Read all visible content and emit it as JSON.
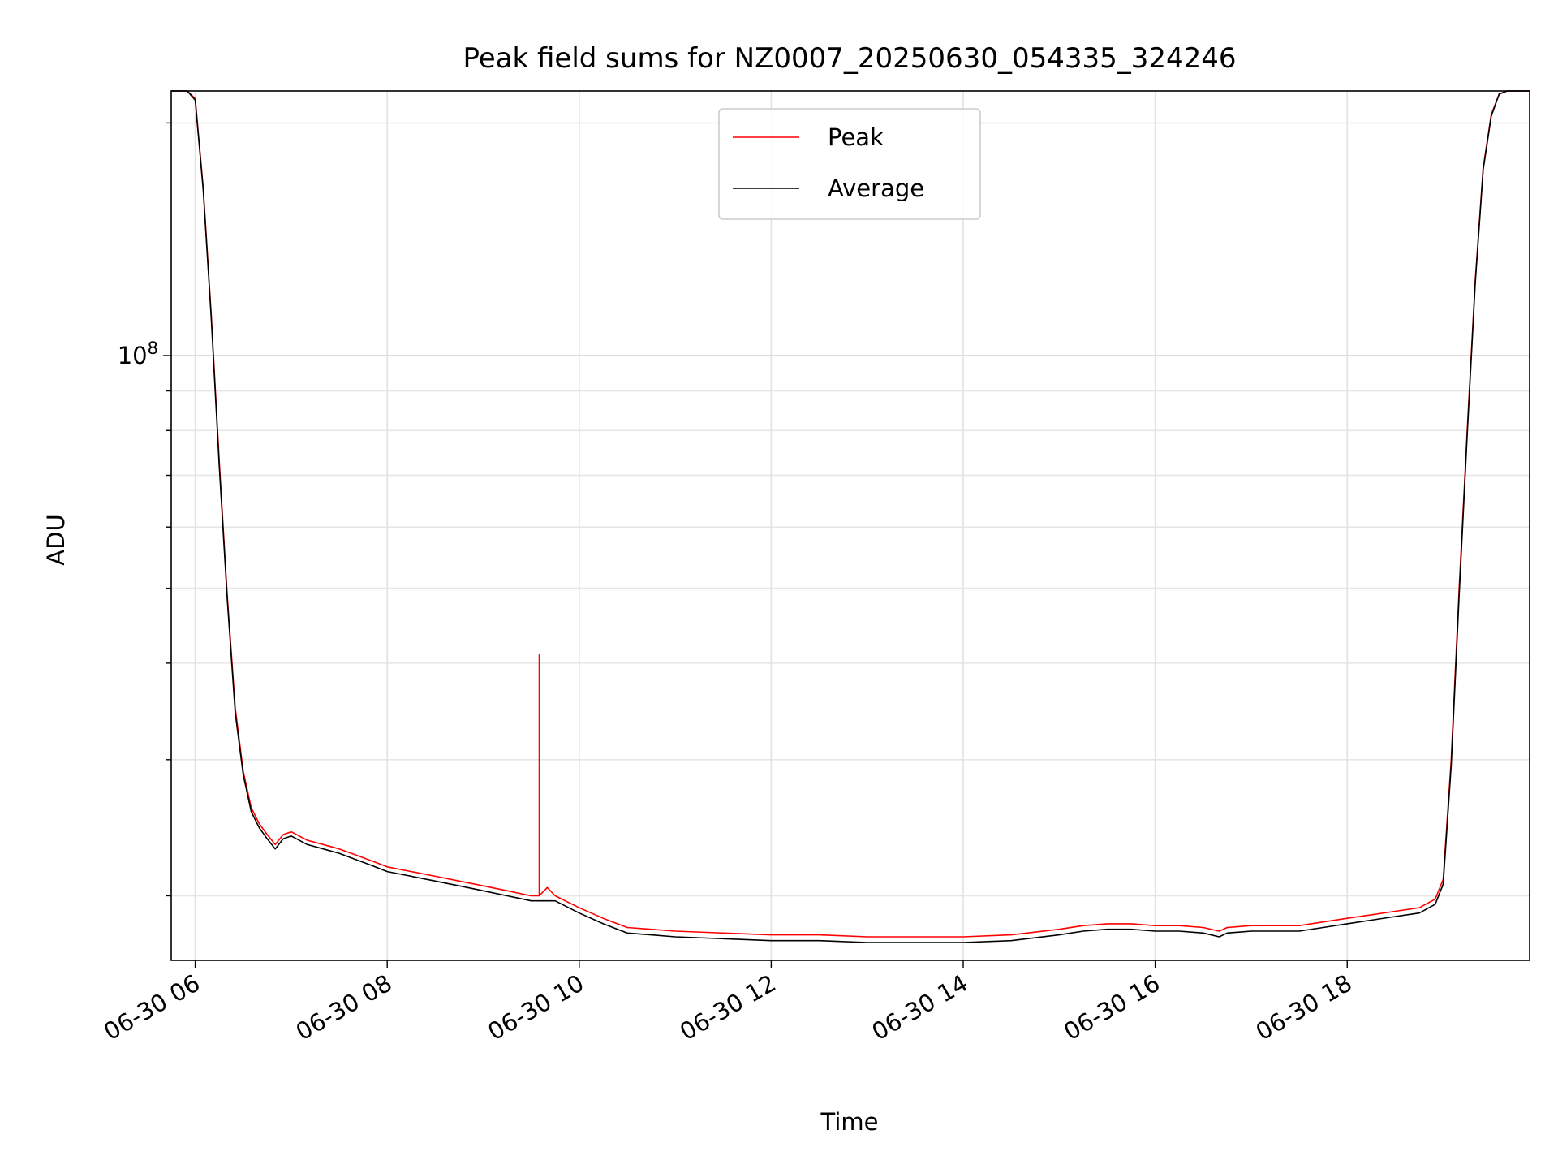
{
  "chart_data": {
    "type": "line",
    "title": "Peak field sums for NZ0007_20250630_054335_324246",
    "xlabel": "Time",
    "ylabel": "ADU",
    "y_scale": "log",
    "grid": "on (major and minor)",
    "legend_placement": "upper center",
    "x_ticks": [
      "06-30 06",
      "06-30 08",
      "06-30 10",
      "06-30 12",
      "06-30 14",
      "06-30 16",
      "06-30 18"
    ],
    "y_major_tick": {
      "base": "10",
      "exponent": "8"
    },
    "xlim": [
      "2025-06-30 05:45",
      "2025-06-30 19:54"
    ],
    "ylim": [
      16500000,
      220000000
    ],
    "series": [
      {
        "name": "Peak",
        "color": "#ff0000",
        "x": [
          "05:45",
          "05:55",
          "06:00",
          "06:05",
          "06:10",
          "06:15",
          "06:20",
          "06:25",
          "06:30",
          "06:35",
          "06:40",
          "06:45",
          "06:50",
          "06:55",
          "07:00",
          "07:10",
          "07:20",
          "07:30",
          "07:40",
          "07:50",
          "08:00",
          "08:15",
          "08:30",
          "08:45",
          "09:00",
          "09:15",
          "09:30",
          "09:35",
          "09:35",
          "09:35",
          "09:40",
          "09:45",
          "10:00",
          "10:15",
          "10:30",
          "10:45",
          "11:00",
          "11:30",
          "12:00",
          "12:30",
          "13:00",
          "13:30",
          "14:00",
          "14:30",
          "15:00",
          "15:15",
          "15:30",
          "15:45",
          "16:00",
          "16:15",
          "16:30",
          "16:40",
          "16:45",
          "17:00",
          "17:15",
          "17:30",
          "17:45",
          "18:00",
          "18:15",
          "18:30",
          "18:45",
          "18:55",
          "19:00",
          "19:05",
          "19:10",
          "19:15",
          "19:20",
          "19:25",
          "19:30",
          "19:35",
          "19:40",
          "19:45",
          "19:54"
        ],
        "y": [
          220000000,
          220000000,
          215000000,
          165000000,
          113000000,
          73000000,
          49000000,
          35000000,
          29000000,
          26000000,
          24800000,
          24000000,
          23300000,
          24000000,
          24200000,
          23600000,
          23300000,
          23000000,
          22600000,
          22200000,
          21800000,
          21500000,
          21200000,
          20900000,
          20600000,
          20300000,
          20000000,
          20000000,
          41000000,
          20000000,
          20500000,
          20000000,
          19300000,
          18700000,
          18200000,
          18100000,
          18000000,
          17900000,
          17800000,
          17800000,
          17700000,
          17700000,
          17700000,
          17800000,
          18100000,
          18300000,
          18400000,
          18400000,
          18300000,
          18300000,
          18200000,
          18000000,
          18200000,
          18300000,
          18300000,
          18300000,
          18500000,
          18700000,
          18900000,
          19100000,
          19300000,
          19800000,
          21000000,
          30000000,
          50000000,
          80000000,
          125000000,
          175000000,
          205000000,
          218000000,
          220000000,
          220000000,
          220000000
        ]
      },
      {
        "name": "Average",
        "color": "#000000",
        "x": [
          "05:45",
          "05:55",
          "06:00",
          "06:05",
          "06:10",
          "06:15",
          "06:20",
          "06:25",
          "06:30",
          "06:35",
          "06:40",
          "06:45",
          "06:50",
          "06:55",
          "07:00",
          "07:10",
          "07:20",
          "07:30",
          "07:40",
          "07:50",
          "08:00",
          "08:15",
          "08:30",
          "08:45",
          "09:00",
          "09:15",
          "09:30",
          "09:45",
          "10:00",
          "10:15",
          "10:30",
          "10:45",
          "11:00",
          "11:30",
          "12:00",
          "12:30",
          "13:00",
          "13:30",
          "14:00",
          "14:30",
          "15:00",
          "15:15",
          "15:30",
          "15:45",
          "16:00",
          "16:15",
          "16:30",
          "16:40",
          "16:45",
          "17:00",
          "17:15",
          "17:30",
          "17:45",
          "18:00",
          "18:15",
          "18:30",
          "18:45",
          "18:55",
          "19:00",
          "19:05",
          "19:10",
          "19:15",
          "19:20",
          "19:25",
          "19:30",
          "19:35",
          "19:40",
          "19:45",
          "19:54"
        ],
        "y": [
          220000000,
          220000000,
          214000000,
          164000000,
          112000000,
          72000000,
          48500000,
          34500000,
          28700000,
          25700000,
          24500000,
          23700000,
          23000000,
          23700000,
          23900000,
          23300000,
          23000000,
          22700000,
          22300000,
          21900000,
          21500000,
          21200000,
          20900000,
          20600000,
          20300000,
          20000000,
          19700000,
          19700000,
          19000000,
          18400000,
          17900000,
          17800000,
          17700000,
          17600000,
          17500000,
          17500000,
          17400000,
          17400000,
          17400000,
          17500000,
          17800000,
          18000000,
          18100000,
          18100000,
          18000000,
          18000000,
          17900000,
          17700000,
          17900000,
          18000000,
          18000000,
          18000000,
          18200000,
          18400000,
          18600000,
          18800000,
          19000000,
          19500000,
          20700000,
          29500000,
          49000000,
          79000000,
          124000000,
          174000000,
          204000000,
          218000000,
          220000000,
          220000000,
          220000000
        ]
      }
    ]
  }
}
